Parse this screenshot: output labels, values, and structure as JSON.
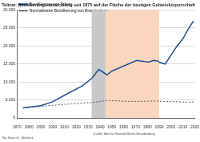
{
  "chart_data": {
    "type": "line",
    "title": "Teltow: Bevölkerungsentwicklung seit 1875 auf der Fläche der heutigen Gebietskörperschaft",
    "x": [
      1875,
      1890,
      1900,
      1910,
      1925,
      1933,
      1939,
      1946,
      1950,
      1964,
      1971,
      1981,
      1985,
      1989,
      1990,
      1995,
      2000,
      2005,
      2010,
      2015,
      2019
    ],
    "series": [
      {
        "name": "Bevölkerung von Teltow",
        "color": "#1f4e9c",
        "line_style": "solid",
        "values": [
          2800,
          3400,
          4500,
          6300,
          8900,
          11000,
          13500,
          12000,
          13000,
          15000,
          16000,
          15500,
          16000,
          15800,
          15500,
          15000,
          17500,
          20000,
          22000,
          25000,
          27000
        ]
      },
      {
        "name": "Normalisierte Bevölkerung von Brandenburg",
        "color": "#555555",
        "line_style": "dashed",
        "values": [
          2800,
          3200,
          3500,
          3800,
          4100,
          4300,
          4500,
          4900,
          4800,
          4600,
          4600,
          4650,
          4700,
          4700,
          4650,
          4550,
          4600,
          4500,
          4400,
          4400,
          4450
        ]
      }
    ],
    "xlim": [
      1870,
      2020
    ],
    "xticks": [
      1870,
      1880,
      1890,
      1900,
      1910,
      1920,
      1930,
      1940,
      1950,
      1960,
      1970,
      1980,
      1990,
      2000,
      2010,
      2020
    ],
    "ylim": [
      0,
      30000
    ],
    "yticks": [
      0,
      {
        "value": 5000,
        "label": "5.000"
      },
      {
        "value": 10000,
        "label": "10.000"
      },
      {
        "value": 15000,
        "label": "15.000"
      },
      {
        "value": 20000,
        "label": "20.000"
      },
      {
        "value": 25000,
        "label": "25.000"
      },
      {
        "value": 30000,
        "label": "30.000"
      }
    ],
    "shaded_periods": [
      {
        "from": 1933,
        "to": 1945,
        "color": "#c8c8c8"
      },
      {
        "from": 1945,
        "to": 1990,
        "color": "#fad6bd"
      }
    ],
    "grid": true,
    "legend": "top left",
    "source": "Quelle: Amt für Statistik Berlin-Brandenburg",
    "author": "By: Hans G. Oberlack"
  }
}
